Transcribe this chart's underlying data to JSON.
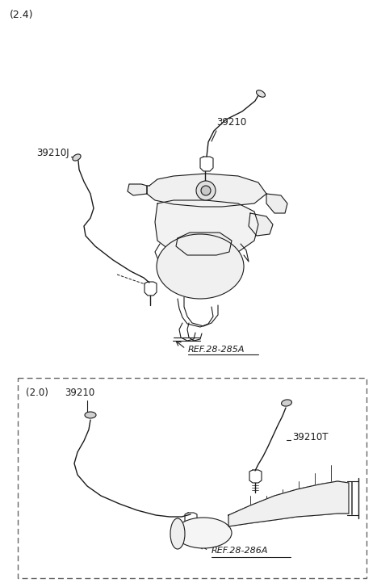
{
  "bg_color": "#ffffff",
  "line_color": "#1a1a1a",
  "label_24": "(2.4)",
  "label_20": "(2.0)",
  "part_39210": "39210",
  "part_39210J": "39210J",
  "part_39210T": "39210T",
  "ref_285A": "REF.28-285A",
  "ref_286A": "REF.28-286A",
  "figsize": [
    4.67,
    7.27
  ],
  "dpi": 100
}
